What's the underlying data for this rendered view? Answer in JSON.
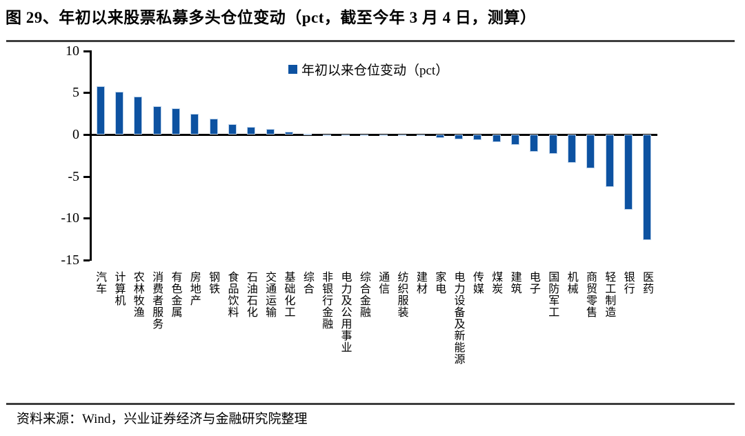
{
  "header": {
    "title": "图 29、年初以来股票私募多头仓位变动（pct，截至今年 3 月 4 日，测算）"
  },
  "legend": {
    "label": "年初以来仓位变动（pct）"
  },
  "footer": {
    "source": "资料来源：Wind，兴业证券经济与金融研究院整理"
  },
  "colors": {
    "bar": "#0d52a1",
    "axis": "#000000",
    "rule": "#3d3d3d"
  },
  "chart_data": {
    "type": "bar",
    "title": "年初以来股票私募多头仓位变动（pct，截至今年 3 月 4 日，测算）",
    "legend": [
      "年初以来仓位变动（pct）"
    ],
    "legend_position": "top-center",
    "categories": [
      "汽车",
      "计算机",
      "农林牧渔",
      "消费者服务",
      "有色金属",
      "房地产",
      "钢铁",
      "食品饮料",
      "石油石化",
      "交通运输",
      "基础化工",
      "综合",
      "非银行金融",
      "电力及公用事业",
      "综合金融",
      "通信",
      "纺织服装",
      "建材",
      "家电",
      "电力设备及新能源",
      "传媒",
      "煤炭",
      "建筑",
      "电子",
      "国防军工",
      "机械",
      "商贸零售",
      "轻工制造",
      "银行",
      "医药"
    ],
    "values": [
      5.8,
      5.1,
      4.5,
      3.4,
      3.1,
      2.5,
      1.9,
      1.2,
      0.9,
      0.7,
      0.3,
      0.1,
      -0.1,
      -0.1,
      -0.1,
      -0.1,
      -0.1,
      -0.2,
      -0.4,
      -0.6,
      -0.7,
      -0.9,
      -1.2,
      -2.1,
      -2.3,
      -3.4,
      -4.0,
      -6.3,
      -9.0,
      -12.6
    ],
    "xlabel": "",
    "ylabel": "",
    "ylim": [
      -15,
      10
    ],
    "yticks": [
      10,
      5,
      0,
      -5,
      -10,
      -15
    ],
    "grid": false
  }
}
